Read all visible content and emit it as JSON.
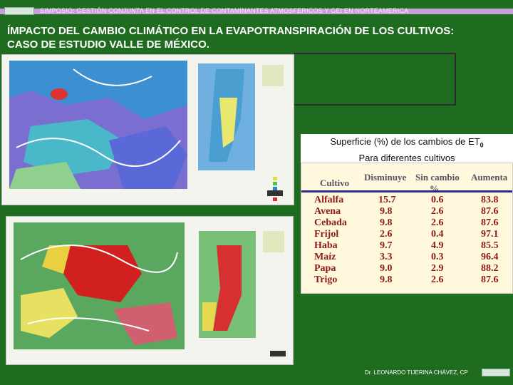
{
  "header": {
    "symposium": "SIMPOSIO: GESTIÓN CONJUNTA EN EL CONTROL DE CONTAMINANTES ATMOSFERICOS Y GEI EN NORTEAMERICA"
  },
  "slide": {
    "title_line1": "ÍMPACTO DEL CAMBIO CLIMÁTICO EN LA EVAPOTRANSPIRACIÓN DE LOS CULTIVOS:",
    "title_line2": "CASO DE ESTUDIO VALLE DE MÉXICO."
  },
  "table": {
    "title_main": "Superficie (%) de los cambios de ET",
    "title_sub": "0",
    "title_line2": "Para diferentes cultivos",
    "headers": {
      "crop": "Cultivo",
      "decrease": "Disminuye",
      "nochange": "Sin cambio",
      "increase": "Aumenta",
      "unit": "%"
    },
    "rows": [
      {
        "crop": "Alfalfa",
        "decrease": "15.7",
        "nochange": "0.6",
        "increase": "83.8"
      },
      {
        "crop": "Avena",
        "decrease": "9.8",
        "nochange": "2.6",
        "increase": "87.6"
      },
      {
        "crop": "Cebada",
        "decrease": "9.8",
        "nochange": "2.6",
        "increase": "87.6"
      },
      {
        "crop": "Frijol",
        "decrease": "2.6",
        "nochange": "0.4",
        "increase": "97.1"
      },
      {
        "crop": "Haba",
        "decrease": "9.7",
        "nochange": "4.9",
        "increase": "85.5"
      },
      {
        "crop": "Maíz",
        "decrease": "3.3",
        "nochange": "0.3",
        "increase": "96.4"
      },
      {
        "crop": "Papa",
        "decrease": "9.0",
        "nochange": "2.9",
        "increase": "88.2"
      },
      {
        "crop": "Trigo",
        "decrease": "9.8",
        "nochange": "2.6",
        "increase": "87.6"
      }
    ]
  },
  "footer": {
    "author": "Dr. LEONARDO TIJERINA CHÁVEZ, CP"
  },
  "colors": {
    "background": "#1f6b1f",
    "stripe": "#c8a0d8",
    "table_bg": "#fff8dc",
    "table_text": "#8b1a1a"
  }
}
